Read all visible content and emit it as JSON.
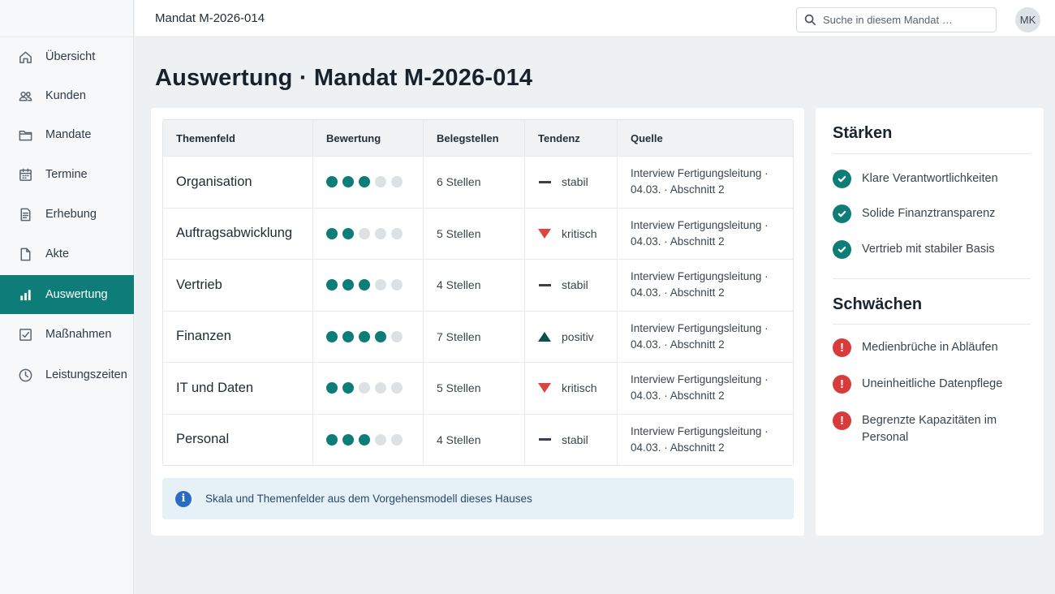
{
  "topbar": {
    "title": "Mandat M-2026-014",
    "search_placeholder": "Suche in diesem Mandat …",
    "avatar": "MK"
  },
  "sidebar": {
    "items": [
      {
        "label": "Übersicht",
        "icon": "home-icon",
        "active": false
      },
      {
        "label": "Kunden",
        "icon": "users-icon",
        "active": false
      },
      {
        "label": "Mandate",
        "icon": "folder-icon",
        "active": false
      },
      {
        "label": "Termine",
        "icon": "calendar-icon",
        "active": false
      },
      {
        "label": "Erhebung",
        "icon": "document-list-icon",
        "active": false
      },
      {
        "label": "Akte",
        "icon": "file-icon",
        "active": false
      },
      {
        "label": "Auswertung",
        "icon": "bar-chart-icon",
        "active": true
      },
      {
        "label": "Maßnahmen",
        "icon": "checkbox-icon",
        "active": false
      },
      {
        "label": "Leistungszeiten",
        "icon": "clock-icon",
        "active": false
      }
    ]
  },
  "page": {
    "title": "Auswertung · Mandat M-2026-014"
  },
  "table": {
    "headers": [
      "Themenfeld",
      "Bewertung",
      "Belegstellen",
      "Tendenz",
      "Quelle"
    ],
    "rows": [
      {
        "topic": "Organisation",
        "rating": 3,
        "rating_max": 5,
        "evidence": "6 Stellen",
        "trend": "stabil",
        "trend_kind": "flat",
        "source_1": "Interview Fertigungsleitung ·",
        "source_2": "04.03. · Abschnitt 2"
      },
      {
        "topic": "Auftragsabwicklung",
        "rating": 2,
        "rating_max": 5,
        "evidence": "5 Stellen",
        "trend": "kritisch",
        "trend_kind": "down",
        "source_1": "Interview Fertigungsleitung ·",
        "source_2": "04.03. · Abschnitt 2"
      },
      {
        "topic": "Vertrieb",
        "rating": 3,
        "rating_max": 5,
        "evidence": "4 Stellen",
        "trend": "stabil",
        "trend_kind": "flat",
        "source_1": "Interview Fertigungsleitung ·",
        "source_2": "04.03. · Abschnitt 2"
      },
      {
        "topic": "Finanzen",
        "rating": 4,
        "rating_max": 5,
        "evidence": "7 Stellen",
        "trend": "positiv",
        "trend_kind": "up",
        "source_1": "Interview Fertigungsleitung ·",
        "source_2": "04.03. · Abschnitt 2"
      },
      {
        "topic": "IT und Daten",
        "rating": 2,
        "rating_max": 5,
        "evidence": "5 Stellen",
        "trend": "kritisch",
        "trend_kind": "down",
        "source_1": "Interview Fertigungsleitung ·",
        "source_2": "04.03. · Abschnitt 2"
      },
      {
        "topic": "Personal",
        "rating": 3,
        "rating_max": 5,
        "evidence": "4 Stellen",
        "trend": "stabil",
        "trend_kind": "flat",
        "source_1": "Interview Fertigungsleitung ·",
        "source_2": "04.03. · Abschnitt 2"
      }
    ]
  },
  "info": {
    "text": "Skala und Themenfelder aus dem Vorgehensmodell dieses Hauses"
  },
  "strengths": {
    "title": "Stärken",
    "items": [
      "Klare Verantwortlichkeiten",
      "Solide Finanztransparenz",
      "Vertrieb mit stabiler Basis"
    ]
  },
  "weaknesses": {
    "title": "Schwächen",
    "items": [
      "Medienbrüche in Abläufen",
      "Uneinheitliche Datenpflege",
      "Begrenzte Kapazitäten im Personal"
    ]
  },
  "colors": {
    "accent": "#0e7d77",
    "critical": "#d8463f",
    "positive": "#0f4f4b",
    "info": "#2a6ac2"
  }
}
